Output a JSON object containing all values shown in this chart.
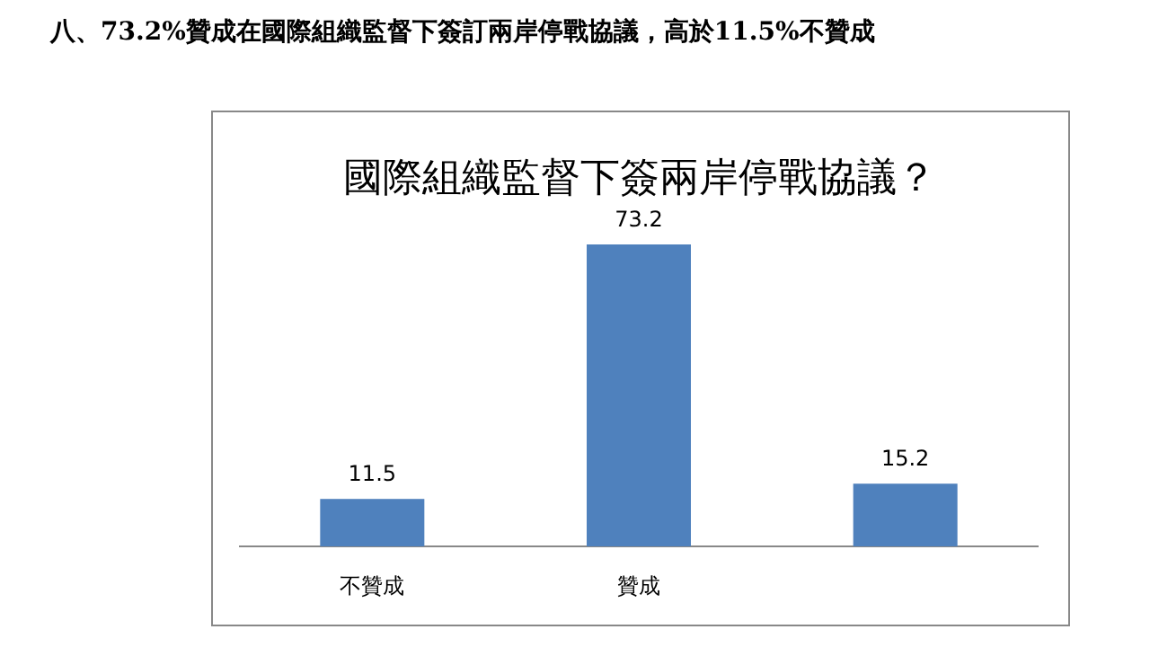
{
  "chart_data": {
    "type": "bar",
    "title": "國際組織監督下簽兩岸停戰協議？",
    "annotations": [
      "八、73.2%贊成在國際組織監督下簽訂兩岸停戰協議，高於11.5%不贊成"
    ],
    "categories": [
      "不贊成",
      "贊成",
      null
    ],
    "values": [
      11.5,
      73.2,
      15.2
    ],
    "color": "#4f81bd",
    "data_labels": true
  }
}
